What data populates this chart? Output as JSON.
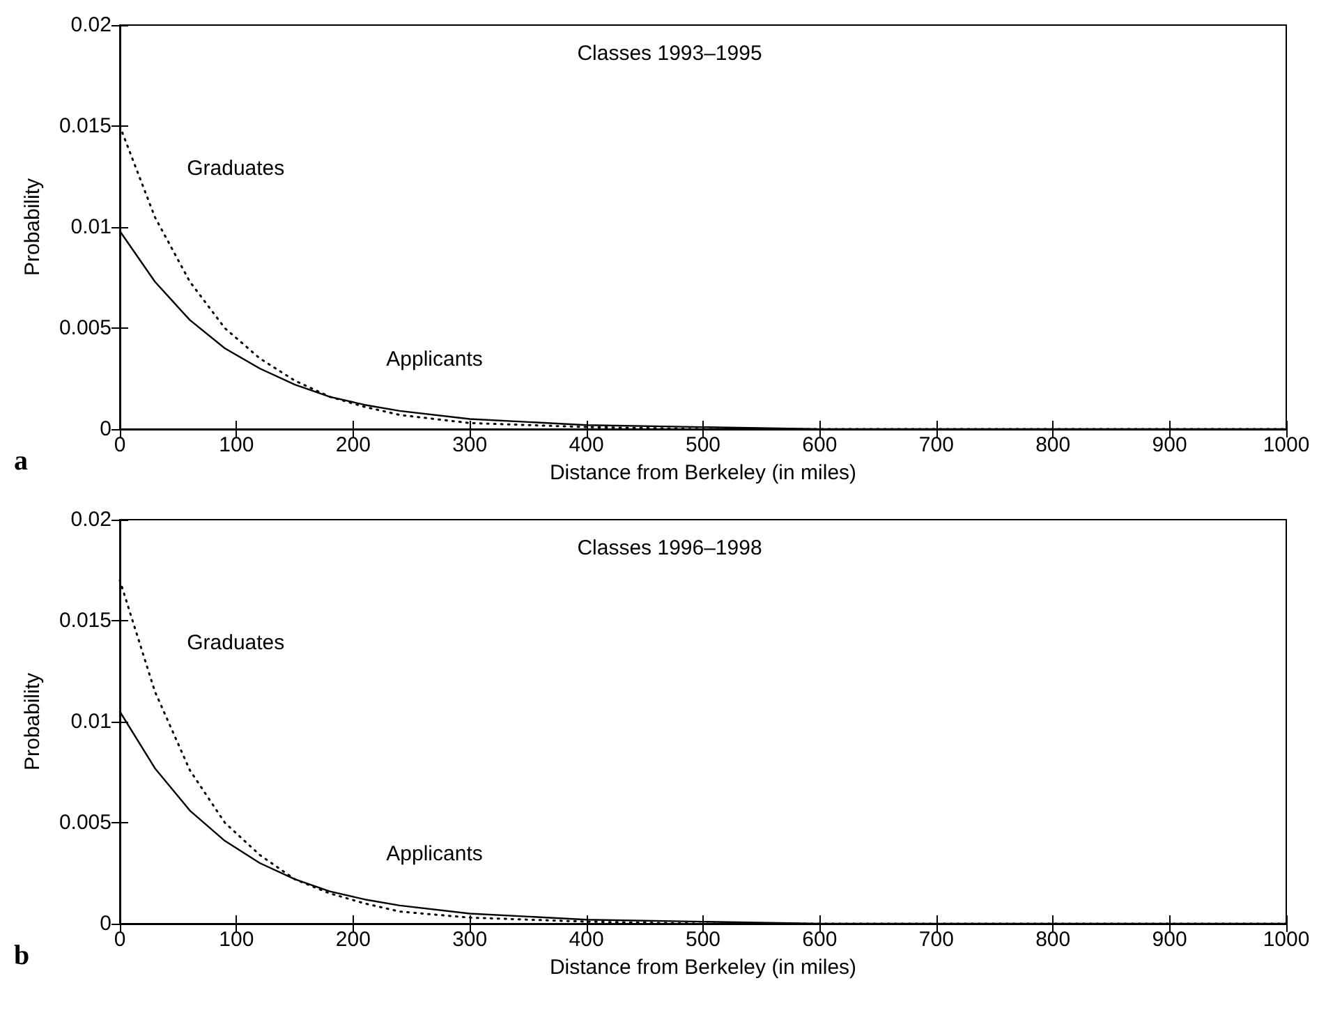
{
  "chart_data": [
    {
      "type": "line",
      "title": "Classes 1993–1995",
      "xlabel": "Distance from Berkeley (in miles)",
      "ylabel": "Probability",
      "annotations": [
        "a"
      ],
      "x": [
        0,
        30,
        60,
        90,
        120,
        150,
        180,
        210,
        240,
        300,
        400,
        500,
        600,
        700,
        800,
        900,
        1000
      ],
      "series": [
        {
          "name": "Graduates",
          "color": "#000000",
          "line_style": "dotted",
          "values": [
            0.015,
            0.0105,
            0.0073,
            0.005,
            0.0035,
            0.0024,
            0.0016,
            0.0011,
            0.0007,
            0.0003,
            0.0001,
            0,
            0,
            0,
            0,
            0,
            0
          ]
        },
        {
          "name": "Applicants",
          "color": "#000000",
          "line_style": "solid",
          "values": [
            0.0098,
            0.0073,
            0.0054,
            0.004,
            0.003,
            0.0022,
            0.0016,
            0.0012,
            0.0009,
            0.0005,
            0.0002,
            0.0001,
            0,
            0,
            0,
            0,
            0
          ]
        }
      ],
      "xlim": [
        0,
        1000
      ],
      "xticks": [
        0,
        100,
        200,
        300,
        400,
        500,
        600,
        700,
        800,
        900,
        1000
      ],
      "ylim": [
        0,
        0.02
      ],
      "yticks": [
        0,
        0.005,
        0.01,
        0.015,
        0.02
      ],
      "marker": "none",
      "grid": false,
      "legend": false
    },
    {
      "type": "line",
      "title": "Classes 1996–1998",
      "xlabel": "Distance from Berkeley (in miles)",
      "ylabel": "Probability",
      "annotations": [
        "b"
      ],
      "x": [
        0,
        30,
        60,
        90,
        120,
        150,
        180,
        210,
        240,
        300,
        400,
        500,
        600,
        700,
        800,
        900,
        1000
      ],
      "series": [
        {
          "name": "Graduates",
          "color": "#000000",
          "line_style": "dotted",
          "values": [
            0.017,
            0.0115,
            0.0076,
            0.005,
            0.0034,
            0.0022,
            0.0015,
            0.001,
            0.0006,
            0.0003,
            0.0001,
            0,
            0,
            0,
            0,
            0,
            0
          ]
        },
        {
          "name": "Applicants",
          "color": "#000000",
          "line_style": "solid",
          "values": [
            0.0105,
            0.0077,
            0.0056,
            0.0041,
            0.003,
            0.0022,
            0.0016,
            0.0012,
            0.0009,
            0.0005,
            0.0002,
            0.0001,
            0,
            0,
            0,
            0,
            0
          ]
        }
      ],
      "xlim": [
        0,
        1000
      ],
      "xticks": [
        0,
        100,
        200,
        300,
        400,
        500,
        600,
        700,
        800,
        900,
        1000
      ],
      "ylim": [
        0,
        0.02
      ],
      "yticks": [
        0,
        0.005,
        0.01,
        0.015,
        0.02
      ],
      "marker": "none",
      "grid": false,
      "legend": false
    }
  ]
}
